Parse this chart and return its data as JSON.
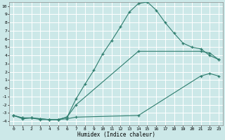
{
  "title": "",
  "xlabel": "Humidex (Indice chaleur)",
  "bg_color": "#cce8e8",
  "grid_color": "#ffffff",
  "line_color": "#2e7d6e",
  "xlim": [
    -0.5,
    23.5
  ],
  "ylim": [
    -4.5,
    10.5
  ],
  "xticks": [
    0,
    1,
    2,
    3,
    4,
    5,
    6,
    7,
    8,
    9,
    10,
    11,
    12,
    13,
    14,
    15,
    16,
    17,
    18,
    19,
    20,
    21,
    22,
    23
  ],
  "yticks": [
    -4,
    -3,
    -2,
    -1,
    0,
    1,
    2,
    3,
    4,
    5,
    6,
    7,
    8,
    9,
    10
  ],
  "line1_x": [
    0,
    1,
    2,
    3,
    4,
    5,
    6,
    7,
    8,
    9,
    10,
    11,
    12,
    13,
    14,
    15,
    16,
    17,
    18,
    19,
    20,
    21,
    22,
    23
  ],
  "line1_y": [
    -3.3,
    -3.7,
    -3.6,
    -3.8,
    -3.8,
    -3.8,
    -3.5,
    -1.3,
    0.5,
    2.2,
    4.2,
    5.8,
    7.5,
    9.3,
    10.3,
    10.5,
    9.5,
    8.0,
    6.7,
    5.5,
    5.0,
    4.8,
    4.0,
    3.5
  ],
  "line2_x": [
    0,
    1,
    2,
    3,
    4,
    5,
    6,
    7,
    14,
    21,
    22,
    23
  ],
  "line2_y": [
    -3.3,
    -3.6,
    -3.6,
    -3.7,
    -3.8,
    -3.8,
    -3.5,
    -2.0,
    4.5,
    4.5,
    4.3,
    3.5
  ],
  "line3_x": [
    0,
    1,
    2,
    3,
    4,
    5,
    6,
    7,
    14,
    21,
    22,
    23
  ],
  "line3_y": [
    -3.3,
    -3.6,
    -3.6,
    -3.7,
    -3.8,
    -3.8,
    -3.7,
    -3.5,
    -3.3,
    1.5,
    1.8,
    1.5
  ]
}
